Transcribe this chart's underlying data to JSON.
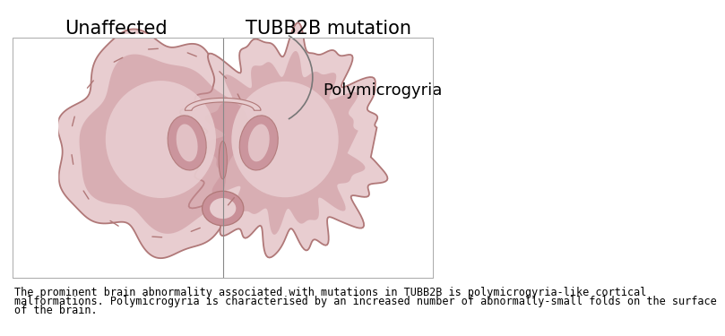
{
  "title_left": "Unaffected",
  "title_right": "TUBB2B mutation",
  "label_annotation": "Polymicrogyria",
  "caption_line1": "The prominent brain abnormality associated with mutations in TUBB2B is polymicrogyria-like cortical",
  "caption_line2": "malformations. Polymicrogyria is characterised by an increased number of abnormally-small folds on the surface",
  "caption_line3": "of the brain.",
  "bg_color": "#ffffff",
  "brain_outer": "#d4a0a8",
  "brain_light": "#e8cdd0",
  "brain_mid": "#c99098",
  "brain_dark": "#b87880",
  "brain_stroke": "#b07878",
  "divider_color": "#888888",
  "box_stroke": "#aaaaaa",
  "arc_color": "#777777",
  "title_fontsize": 15,
  "label_fontsize": 13,
  "caption_fontsize": 8.5
}
